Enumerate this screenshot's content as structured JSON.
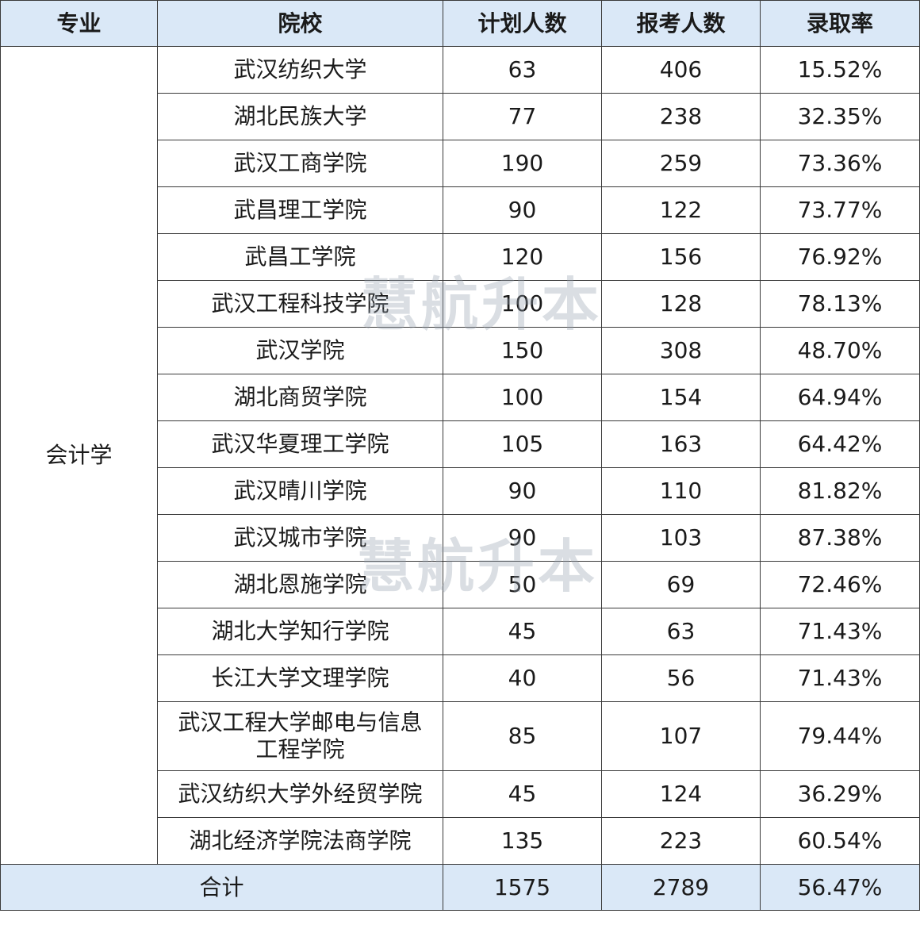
{
  "table": {
    "header": [
      "专业",
      "院校",
      "计划人数",
      "报考人数",
      "录取率"
    ],
    "major": "会计学",
    "rows": [
      [
        "武汉纺织大学",
        63,
        406,
        "15.52%"
      ],
      [
        "湖北民族大学",
        77,
        238,
        "32.35%"
      ],
      [
        "武汉工商学院",
        190,
        259,
        "73.36%"
      ],
      [
        "武昌理工学院",
        90,
        122,
        "73.77%"
      ],
      [
        "武昌工学院",
        120,
        156,
        "76.92%"
      ],
      [
        "武汉工程科技学院",
        100,
        128,
        "78.13%"
      ],
      [
        "武汉学院",
        150,
        308,
        "48.70%"
      ],
      [
        "湖北商贸学院",
        100,
        154,
        "64.94%"
      ],
      [
        "武汉华夏理工学院",
        105,
        163,
        "64.42%"
      ],
      [
        "武汉晴川学院",
        90,
        110,
        "81.82%"
      ],
      [
        "武汉城市学院",
        90,
        103,
        "87.38%"
      ],
      [
        "湖北恩施学院",
        50,
        69,
        "72.46%"
      ],
      [
        "湖北大学知行学院",
        45,
        63,
        "71.43%"
      ],
      [
        "长江大学文理学院",
        40,
        56,
        "71.43%"
      ],
      [
        "武汉工程大学邮电与信息工程学院",
        85,
        107,
        "79.44%"
      ],
      [
        "武汉纺织大学外经贸学院",
        45,
        124,
        "36.29%"
      ],
      [
        "湖北经济学院法商学院",
        135,
        223,
        "60.54%"
      ]
    ],
    "total": [
      "合计",
      1575,
      2789,
      "56.47%"
    ]
  },
  "watermark": "慧航升本"
}
